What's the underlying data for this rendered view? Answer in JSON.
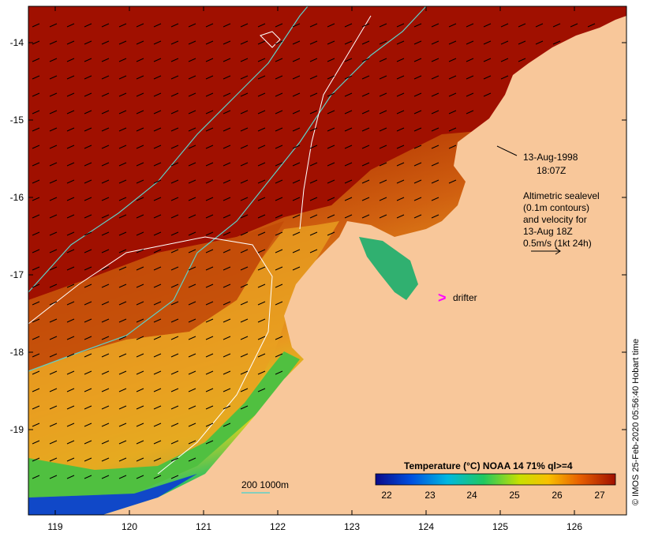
{
  "map": {
    "date_line1": "13-Aug-1998",
    "date_line2": "18:07Z",
    "legend_lines": [
      "Altimetric sealevel",
      "(0.1m contours)",
      "and velocity for",
      "13-Aug 18Z",
      "0.5m/s (1kt 24h)"
    ],
    "drifter_symbol": ">",
    "drifter_label": "drifter",
    "bathymetry_label": "200  1000m",
    "colorbar_title": "Temperature (°C) NOAA 14 71% ql>=4",
    "colorbar_ticks": [
      "22",
      "23",
      "24",
      "25",
      "26",
      "27"
    ],
    "credit": "© IMOS 25-Feb-2020 05:56:40 Hobart time"
  },
  "axes": {
    "lon_ticks": [
      "119",
      "120",
      "121",
      "122",
      "123",
      "124",
      "125",
      "126"
    ],
    "lat_ticks": [
      "-14",
      "-15",
      "-16",
      "-17",
      "-18",
      "-19"
    ]
  },
  "colors": {
    "land": "#f8c79a",
    "warm_sea": "#a01800",
    "contour": "#5fd0c8",
    "drifter": "#ff00ff"
  }
}
